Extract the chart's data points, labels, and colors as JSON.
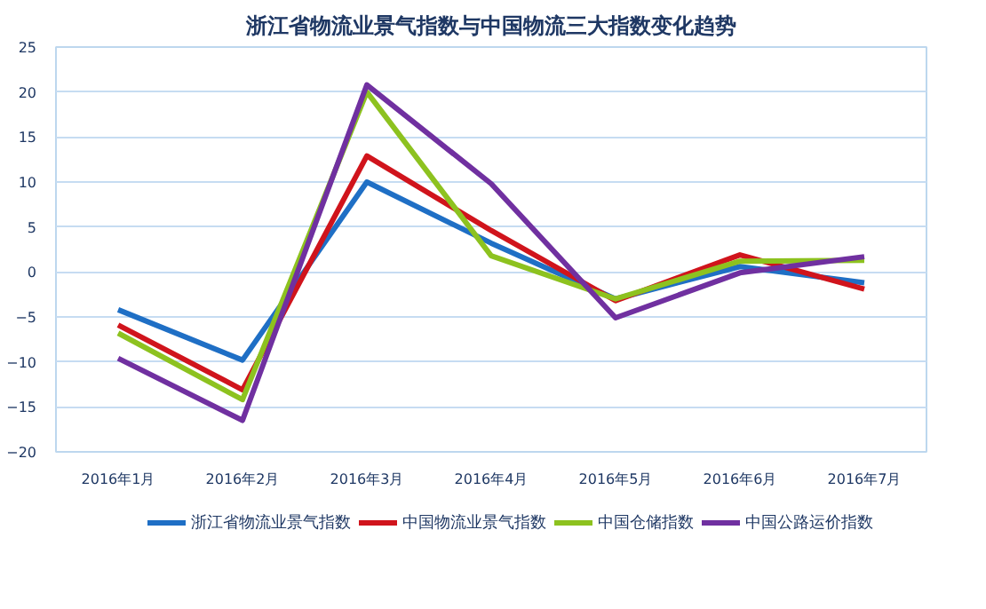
{
  "chart_data": {
    "type": "line",
    "title": "浙江省物流业景气指数与中国物流三大指数变化趋势",
    "categories": [
      "2016年1月",
      "2016年2月",
      "2016年3月",
      "2016年4月",
      "2016年5月",
      "2016年6月",
      "2016年7月"
    ],
    "series": [
      {
        "name": "浙江省物流业景气指数",
        "color": "#1f6fc5",
        "values": [
          -4.2,
          -9.8,
          10,
          3.2,
          -3.0,
          0.6,
          -1.2
        ]
      },
      {
        "name": "中国物流业景气指数",
        "color": "#d0141c",
        "values": [
          -5.9,
          -13.1,
          12.9,
          4.6,
          -3.2,
          1.9,
          -1.9
        ]
      },
      {
        "name": "中国仓储指数",
        "color": "#8dc21f",
        "values": [
          -6.8,
          -14.2,
          20,
          1.8,
          -3.0,
          1.2,
          1.3
        ]
      },
      {
        "name": "中国公路运价指数",
        "color": "#7030a0",
        "values": [
          -9.6,
          -16.5,
          20.8,
          9.8,
          -5.1,
          -0.1,
          1.7
        ]
      }
    ],
    "ylim": [
      -20,
      25
    ],
    "yticks": [
      -20,
      -15,
      -10,
      -5,
      0,
      5,
      10,
      15,
      20,
      25
    ],
    "grid": "y",
    "legend": "bottom",
    "marker": "none",
    "line_style": "solid"
  }
}
